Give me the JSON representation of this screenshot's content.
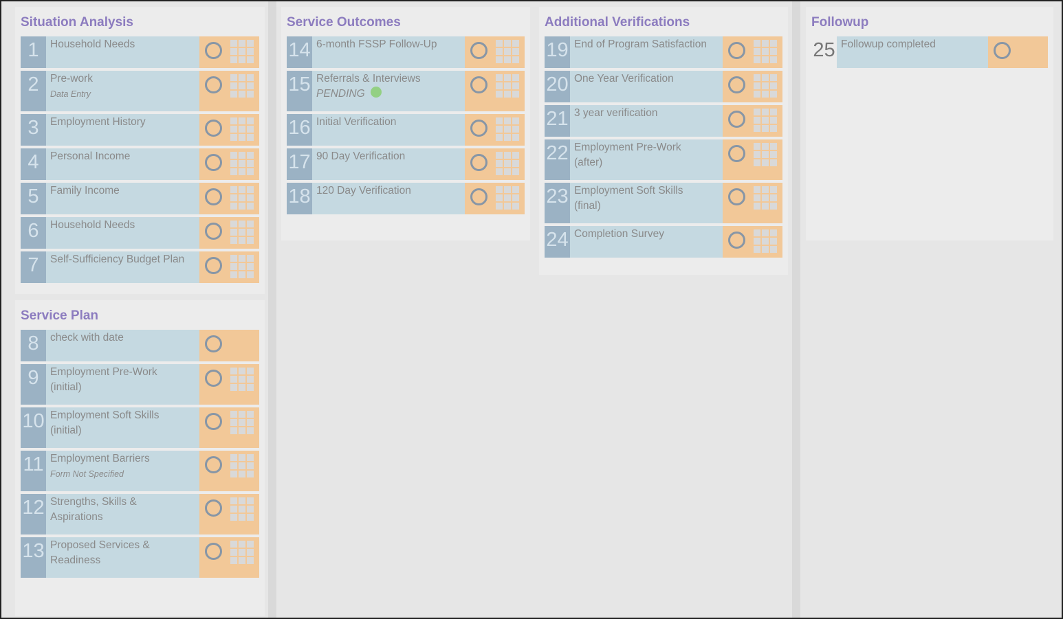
{
  "sections": [
    {
      "title": "Situation Analysis",
      "items": [
        {
          "number": 1,
          "lines": [
            "Household Needs"
          ]
        },
        {
          "number": 2,
          "lines": [
            "Pre-work"
          ],
          "note": "Data Entry"
        },
        {
          "number": 3,
          "lines": [
            "Employment History"
          ]
        },
        {
          "number": 4,
          "lines": [
            "Personal Income"
          ]
        },
        {
          "number": 5,
          "lines": [
            "Family Income"
          ]
        },
        {
          "number": 6,
          "lines": [
            "Household Needs"
          ]
        },
        {
          "number": 7,
          "lines": [
            "Self-Sufficiency Budget Plan"
          ]
        }
      ]
    },
    {
      "title": "Service Plan",
      "items": [
        {
          "number": 8,
          "lines": [
            "check with date"
          ],
          "grid": false
        },
        {
          "number": 9,
          "lines": [
            "Employment Pre-Work",
            "(initial)"
          ]
        },
        {
          "number": 10,
          "lines": [
            "Employment Soft Skills",
            "(initial)"
          ]
        },
        {
          "number": 11,
          "lines": [
            "Employment Barriers"
          ],
          "note": "Form Not Specified"
        },
        {
          "number": 12,
          "lines": [
            "Strengths, Skills &",
            "Aspirations"
          ]
        },
        {
          "number": 13,
          "lines": [
            "Proposed Services &",
            "Readiness"
          ]
        }
      ]
    },
    {
      "title": "Service Outcomes",
      "items": [
        {
          "number": 14,
          "lines": [
            "6-month FSSP Follow-Up"
          ]
        },
        {
          "number": 15,
          "lines": [
            "Referrals & Interviews"
          ],
          "status": "PENDING"
        },
        {
          "number": 16,
          "lines": [
            "Initial Verification"
          ]
        },
        {
          "number": 17,
          "lines": [
            "90 Day Verification"
          ]
        },
        {
          "number": 18,
          "lines": [
            "120 Day Verification"
          ]
        }
      ]
    },
    {
      "title": "Additional Verifications",
      "items": [
        {
          "number": 19,
          "lines": [
            "End of Program Satisfaction"
          ]
        },
        {
          "number": 20,
          "lines": [
            "One Year Verification"
          ]
        },
        {
          "number": 21,
          "lines": [
            "3 year verification"
          ]
        },
        {
          "number": 22,
          "lines": [
            "Employment Pre-Work",
            "(after)"
          ]
        },
        {
          "number": 23,
          "lines": [
            "Employment Soft Skills",
            "(final)"
          ]
        },
        {
          "number": 24,
          "lines": [
            "Completion Survey"
          ]
        }
      ]
    },
    {
      "title": "Followup",
      "items": [
        {
          "number": 25,
          "lines": [
            "Followup completed"
          ],
          "grid": false,
          "plain": true
        }
      ]
    }
  ]
}
